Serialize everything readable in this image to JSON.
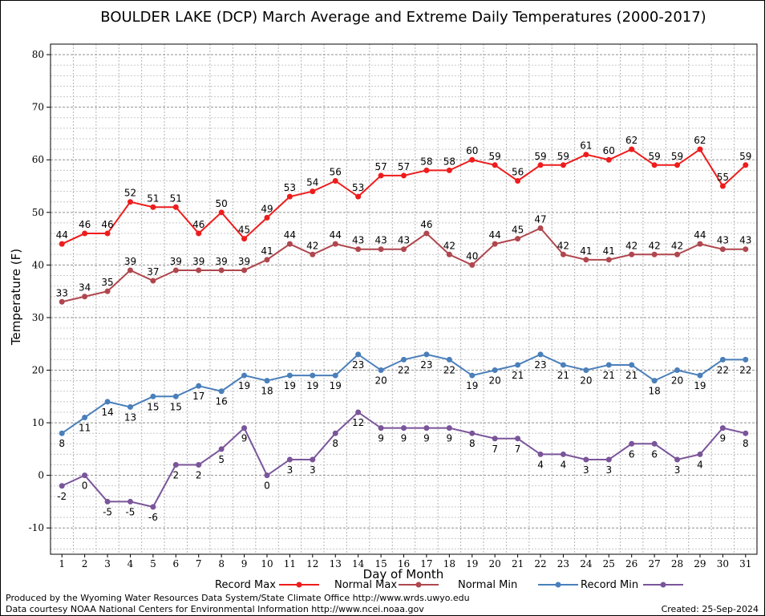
{
  "chart_data": {
    "type": "line",
    "title": "BOULDER LAKE (DCP) March Average and Extreme Daily Temperatures (2000-2017)",
    "xlabel": "Day of Month",
    "ylabel": "Temperature (F)",
    "xlim": [
      0.5,
      31.5
    ],
    "ylim": [
      -15,
      82
    ],
    "yticks": [
      -10,
      0,
      10,
      20,
      30,
      40,
      50,
      60,
      70,
      80
    ],
    "x": [
      1,
      2,
      3,
      4,
      5,
      6,
      7,
      8,
      9,
      10,
      11,
      12,
      13,
      14,
      15,
      16,
      17,
      18,
      19,
      20,
      21,
      22,
      23,
      24,
      25,
      26,
      27,
      28,
      29,
      30,
      31
    ],
    "grid": true,
    "legend_position": "bottom",
    "series": [
      {
        "name": "Record Max",
        "color": "#ee1c1c",
        "label_pos": "above",
        "values": [
          44,
          46,
          46,
          52,
          51,
          51,
          46,
          50,
          45,
          49,
          53,
          54,
          56,
          53,
          57,
          57,
          58,
          58,
          60,
          59,
          56,
          59,
          59,
          61,
          60,
          62,
          59,
          59,
          62,
          55,
          59
        ]
      },
      {
        "name": "Normal Max",
        "color": "#b0474e",
        "label_pos": "above",
        "values": [
          33,
          34,
          35,
          39,
          37,
          39,
          39,
          39,
          39,
          41,
          44,
          42,
          44,
          43,
          43,
          43,
          46,
          42,
          40,
          44,
          45,
          47,
          42,
          41,
          41,
          42,
          42,
          42,
          44,
          43,
          43
        ]
      },
      {
        "name": "Normal Min",
        "color": "#4a7fba",
        "label_pos": "below",
        "values": [
          8,
          11,
          14,
          13,
          15,
          15,
          17,
          16,
          19,
          18,
          19,
          19,
          19,
          23,
          20,
          22,
          23,
          22,
          19,
          20,
          21,
          23,
          21,
          20,
          21,
          21,
          18,
          20,
          19,
          22,
          22
        ]
      },
      {
        "name": "Record Min",
        "color": "#7a559a",
        "label_pos": "below",
        "values": [
          -2,
          0,
          -5,
          -5,
          -6,
          2,
          2,
          5,
          9,
          0,
          3,
          3,
          8,
          12,
          9,
          9,
          9,
          9,
          8,
          7,
          7,
          4,
          4,
          3,
          3,
          6,
          6,
          3,
          4,
          9,
          8
        ]
      }
    ]
  },
  "footer": {
    "produced_by": "Produced by the Wyoming Water Resources Data System/State Climate Office http://www.wrds.uwyo.edu",
    "data_courtesy": "Data courtesy NOAA National Centers for Environmental Information http://www.ncei.noaa.gov",
    "created": "Created:  25-Sep-2024"
  }
}
